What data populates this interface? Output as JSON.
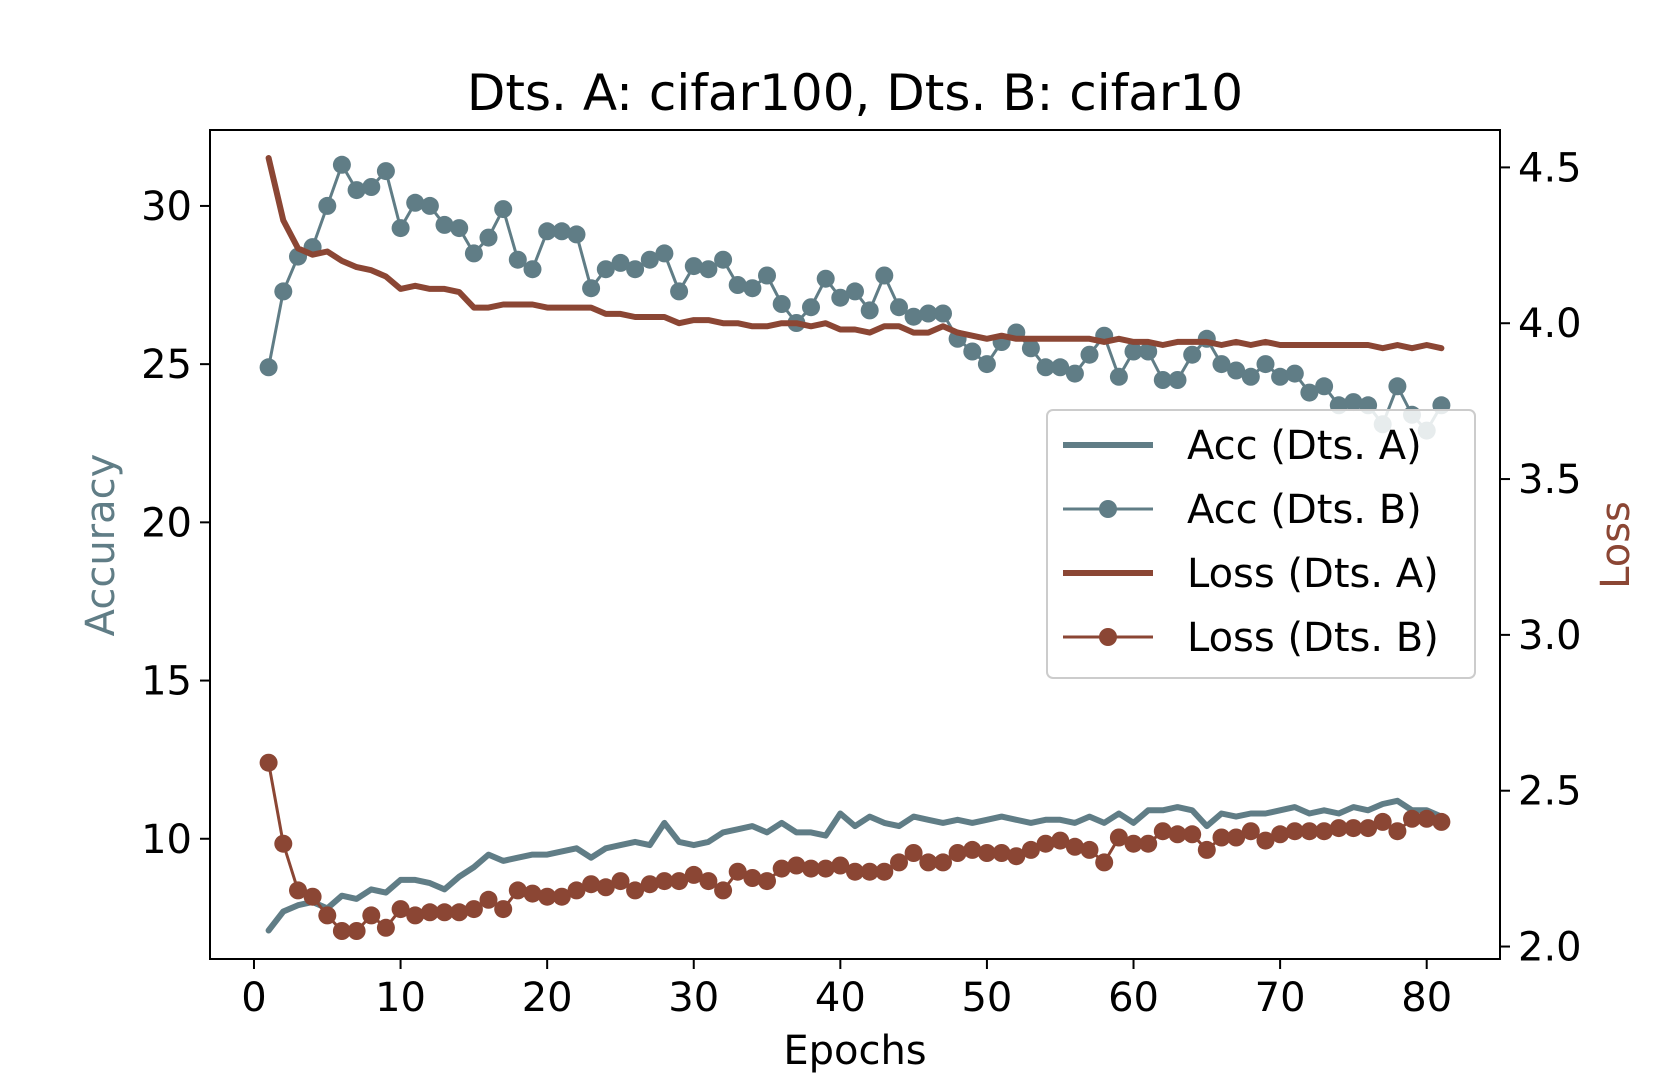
{
  "chart_data": {
    "type": "line",
    "title": "Dts. A: cifar100, Dts. B: cifar10",
    "xlabel": "Epochs",
    "ylabel_left": "Accuracy",
    "ylabel_right": "Loss",
    "xlim": [
      -3,
      85
    ],
    "ylim_left": [
      6.2,
      32.4
    ],
    "ylim_right": [
      1.96,
      4.62
    ],
    "xticks": [
      "0",
      "10",
      "20",
      "30",
      "40",
      "50",
      "60",
      "70",
      "80"
    ],
    "yticks_left": [
      "10",
      "15",
      "20",
      "25",
      "30"
    ],
    "yticks_right": [
      "2.0",
      "2.5",
      "3.0",
      "3.5",
      "4.0",
      "4.5"
    ],
    "grid": false,
    "legend_position": "center-right",
    "colors": {
      "accuracy": "#607d86",
      "loss": "#8b4634"
    },
    "x": [
      1,
      2,
      3,
      4,
      5,
      6,
      7,
      8,
      9,
      10,
      11,
      12,
      13,
      14,
      15,
      16,
      17,
      18,
      19,
      20,
      21,
      22,
      23,
      24,
      25,
      26,
      27,
      28,
      29,
      30,
      31,
      32,
      33,
      34,
      35,
      36,
      37,
      38,
      39,
      40,
      41,
      42,
      43,
      44,
      45,
      46,
      47,
      48,
      49,
      50,
      51,
      52,
      53,
      54,
      55,
      56,
      57,
      58,
      59,
      60,
      61,
      62,
      63,
      64,
      65,
      66,
      67,
      68,
      69,
      70,
      71,
      72,
      73,
      74,
      75,
      76,
      77,
      78,
      79,
      80,
      81
    ],
    "series": [
      {
        "name": "Acc (Dts. A)",
        "axis": "left",
        "color": "#607d86",
        "marker": false,
        "values": [
          7.1,
          7.7,
          7.9,
          8.0,
          7.8,
          8.2,
          8.1,
          8.4,
          8.3,
          8.7,
          8.7,
          8.6,
          8.4,
          8.8,
          9.1,
          9.5,
          9.3,
          9.4,
          9.5,
          9.5,
          9.6,
          9.7,
          9.4,
          9.7,
          9.8,
          9.9,
          9.8,
          10.5,
          9.9,
          9.8,
          9.9,
          10.2,
          10.3,
          10.4,
          10.2,
          10.5,
          10.2,
          10.2,
          10.1,
          10.8,
          10.4,
          10.7,
          10.5,
          10.4,
          10.7,
          10.6,
          10.5,
          10.6,
          10.5,
          10.6,
          10.7,
          10.6,
          10.5,
          10.6,
          10.6,
          10.5,
          10.7,
          10.5,
          10.8,
          10.5,
          10.9,
          10.9,
          11.0,
          10.9,
          10.4,
          10.8,
          10.7,
          10.8,
          10.8,
          10.9,
          11.0,
          10.8,
          10.9,
          10.8,
          11.0,
          10.9,
          11.1,
          11.2,
          10.9,
          10.9,
          10.7
        ]
      },
      {
        "name": "Acc (Dts. B)",
        "axis": "left",
        "color": "#607d86",
        "marker": true,
        "values": [
          24.9,
          27.3,
          28.4,
          28.7,
          30.0,
          31.3,
          30.5,
          30.6,
          31.1,
          29.3,
          30.1,
          30.0,
          29.4,
          29.3,
          28.5,
          29.0,
          29.9,
          28.3,
          28.0,
          29.2,
          29.2,
          29.1,
          27.4,
          28.0,
          28.2,
          28.0,
          28.3,
          28.5,
          27.3,
          28.1,
          28.0,
          28.3,
          27.5,
          27.4,
          27.8,
          26.9,
          26.3,
          26.8,
          27.7,
          27.1,
          27.3,
          26.7,
          27.8,
          26.8,
          26.5,
          26.6,
          26.6,
          25.8,
          25.4,
          25.0,
          25.7,
          26.0,
          25.5,
          24.9,
          24.9,
          24.7,
          25.3,
          25.9,
          24.6,
          25.4,
          25.4,
          24.5,
          24.5,
          25.3,
          25.8,
          25.0,
          24.8,
          24.6,
          25.0,
          24.6,
          24.7,
          24.1,
          24.3,
          23.7,
          23.8,
          23.7,
          23.1,
          24.3,
          23.4,
          22.9,
          23.7
        ]
      },
      {
        "name": "Loss (Dts. A)",
        "axis": "right",
        "color": "#8b4634",
        "marker": false,
        "values": [
          4.53,
          4.33,
          4.24,
          4.22,
          4.23,
          4.2,
          4.18,
          4.17,
          4.15,
          4.11,
          4.12,
          4.11,
          4.11,
          4.1,
          4.05,
          4.05,
          4.06,
          4.06,
          4.06,
          4.05,
          4.05,
          4.05,
          4.05,
          4.03,
          4.03,
          4.02,
          4.02,
          4.02,
          4.0,
          4.01,
          4.01,
          4.0,
          4.0,
          3.99,
          3.99,
          4.0,
          4.0,
          3.99,
          4.0,
          3.98,
          3.98,
          3.97,
          3.99,
          3.99,
          3.97,
          3.97,
          3.99,
          3.97,
          3.96,
          3.95,
          3.96,
          3.95,
          3.95,
          3.95,
          3.95,
          3.95,
          3.95,
          3.94,
          3.95,
          3.94,
          3.94,
          3.93,
          3.94,
          3.94,
          3.94,
          3.93,
          3.94,
          3.93,
          3.94,
          3.93,
          3.93,
          3.93,
          3.93,
          3.93,
          3.93,
          3.93,
          3.92,
          3.93,
          3.92,
          3.93,
          3.92
        ]
      },
      {
        "name": "Loss (Dts. B)",
        "axis": "right",
        "color": "#8b4634",
        "marker": true,
        "values": [
          2.59,
          2.33,
          2.18,
          2.16,
          2.1,
          2.05,
          2.05,
          2.1,
          2.06,
          2.12,
          2.1,
          2.11,
          2.11,
          2.11,
          2.12,
          2.15,
          2.12,
          2.18,
          2.17,
          2.16,
          2.16,
          2.18,
          2.2,
          2.19,
          2.21,
          2.18,
          2.2,
          2.21,
          2.21,
          2.23,
          2.21,
          2.18,
          2.24,
          2.22,
          2.21,
          2.25,
          2.26,
          2.25,
          2.25,
          2.26,
          2.24,
          2.24,
          2.24,
          2.27,
          2.3,
          2.27,
          2.27,
          2.3,
          2.31,
          2.3,
          2.3,
          2.29,
          2.31,
          2.33,
          2.34,
          2.32,
          2.31,
          2.27,
          2.35,
          2.33,
          2.33,
          2.37,
          2.36,
          2.36,
          2.31,
          2.35,
          2.35,
          2.37,
          2.34,
          2.36,
          2.37,
          2.37,
          2.37,
          2.38,
          2.38,
          2.38,
          2.4,
          2.37,
          2.41,
          2.41,
          2.4
        ]
      }
    ]
  }
}
